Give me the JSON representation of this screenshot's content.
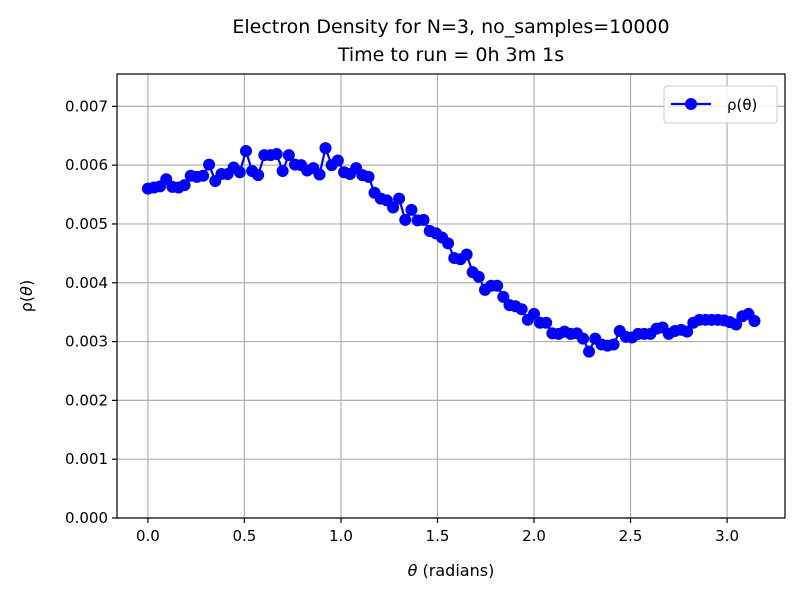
{
  "chart_data": {
    "type": "line",
    "title": "Electron Density for N=3, no_samples=10000",
    "subtitle": "Time to run = 0h 3m 1s",
    "xlabel_italic": "θ",
    "xlabel_rest": " (radians)",
    "ylabel_prefix": "ρ(",
    "ylabel_italic": "θ",
    "ylabel_suffix": ")",
    "xlim": [
      -0.16,
      3.3
    ],
    "ylim": [
      0.0,
      0.00755
    ],
    "xticks": [
      0.0,
      0.5,
      1.0,
      1.5,
      2.0,
      2.5,
      3.0
    ],
    "xtick_labels": [
      "0.0",
      "0.5",
      "1.0",
      "1.5",
      "2.0",
      "2.5",
      "3.0"
    ],
    "yticks": [
      0.0,
      0.001,
      0.002,
      0.003,
      0.004,
      0.005,
      0.006,
      0.007
    ],
    "ytick_labels": [
      "0.000",
      "0.001",
      "0.002",
      "0.003",
      "0.004",
      "0.005",
      "0.006",
      "0.007"
    ],
    "grid": true,
    "legend_position": "top-right",
    "series": [
      {
        "name": "ρ(θ)",
        "color": "#0000ff",
        "marker": "circle",
        "x": [
          0.0,
          0.032,
          0.063,
          0.095,
          0.127,
          0.159,
          0.19,
          0.222,
          0.254,
          0.286,
          0.317,
          0.349,
          0.381,
          0.413,
          0.444,
          0.476,
          0.508,
          0.54,
          0.571,
          0.603,
          0.635,
          0.667,
          0.698,
          0.73,
          0.762,
          0.794,
          0.825,
          0.857,
          0.889,
          0.92,
          0.952,
          0.984,
          1.016,
          1.047,
          1.079,
          1.111,
          1.143,
          1.174,
          1.206,
          1.238,
          1.27,
          1.301,
          1.333,
          1.365,
          1.397,
          1.428,
          1.46,
          1.492,
          1.524,
          1.555,
          1.587,
          1.619,
          1.651,
          1.682,
          1.714,
          1.746,
          1.778,
          1.809,
          1.841,
          1.873,
          1.904,
          1.936,
          1.968,
          2.0,
          2.031,
          2.063,
          2.095,
          2.127,
          2.158,
          2.19,
          2.222,
          2.254,
          2.285,
          2.317,
          2.349,
          2.381,
          2.412,
          2.444,
          2.476,
          2.508,
          2.539,
          2.571,
          2.603,
          2.635,
          2.666,
          2.698,
          2.73,
          2.762,
          2.793,
          2.825,
          2.857,
          2.889,
          2.92,
          2.952,
          2.984,
          3.015,
          3.047,
          3.079,
          3.111,
          3.142
        ],
        "y": [
          0.0056,
          0.00562,
          0.00564,
          0.00576,
          0.00563,
          0.00562,
          0.00566,
          0.00582,
          0.0058,
          0.00582,
          0.00601,
          0.00573,
          0.00585,
          0.00585,
          0.00596,
          0.00588,
          0.00624,
          0.0059,
          0.00583,
          0.00617,
          0.00617,
          0.00619,
          0.0059,
          0.00617,
          0.00601,
          0.006,
          0.00591,
          0.00595,
          0.00584,
          0.00629,
          0.006,
          0.00608,
          0.00588,
          0.00585,
          0.00595,
          0.00583,
          0.0058,
          0.00553,
          0.00543,
          0.0054,
          0.00528,
          0.00543,
          0.00507,
          0.00524,
          0.00506,
          0.00507,
          0.00488,
          0.00484,
          0.00477,
          0.00467,
          0.00442,
          0.0044,
          0.00448,
          0.00418,
          0.0041,
          0.00388,
          0.00395,
          0.00395,
          0.00376,
          0.00362,
          0.0036,
          0.00355,
          0.00337,
          0.00347,
          0.00332,
          0.00332,
          0.00314,
          0.00313,
          0.00317,
          0.00313,
          0.00314,
          0.00305,
          0.00283,
          0.00305,
          0.00295,
          0.00293,
          0.00295,
          0.00318,
          0.00308,
          0.00307,
          0.00313,
          0.00313,
          0.00313,
          0.00322,
          0.00324,
          0.00313,
          0.00318,
          0.0032,
          0.00317,
          0.00332,
          0.00337,
          0.00337,
          0.00337,
          0.00337,
          0.00336,
          0.00333,
          0.00329,
          0.00343,
          0.00347,
          0.00335
        ]
      }
    ]
  }
}
